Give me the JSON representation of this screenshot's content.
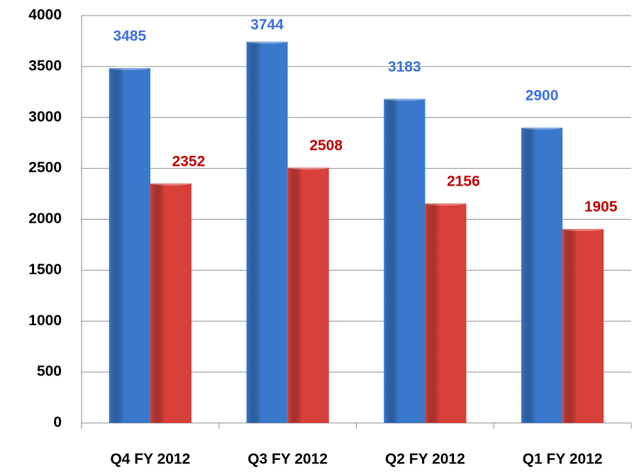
{
  "chart_data": {
    "type": "bar",
    "categories": [
      "Q4 FY 2012",
      "Q3 FY 2012",
      "Q2 FY 2012",
      "Q1 FY 2012"
    ],
    "series": [
      {
        "color": "#3a78cc",
        "label_color": "#3b6fe0",
        "values": [
          3485,
          3744,
          3183,
          2900
        ]
      },
      {
        "color": "#d8403a",
        "label_color": "#c00000",
        "values": [
          2352,
          2508,
          2156,
          1905
        ]
      }
    ],
    "ylim": [
      0,
      4000
    ],
    "yticks": [
      0,
      500,
      1000,
      1500,
      2000,
      2500,
      3000,
      3500,
      4000
    ],
    "grid": true
  }
}
